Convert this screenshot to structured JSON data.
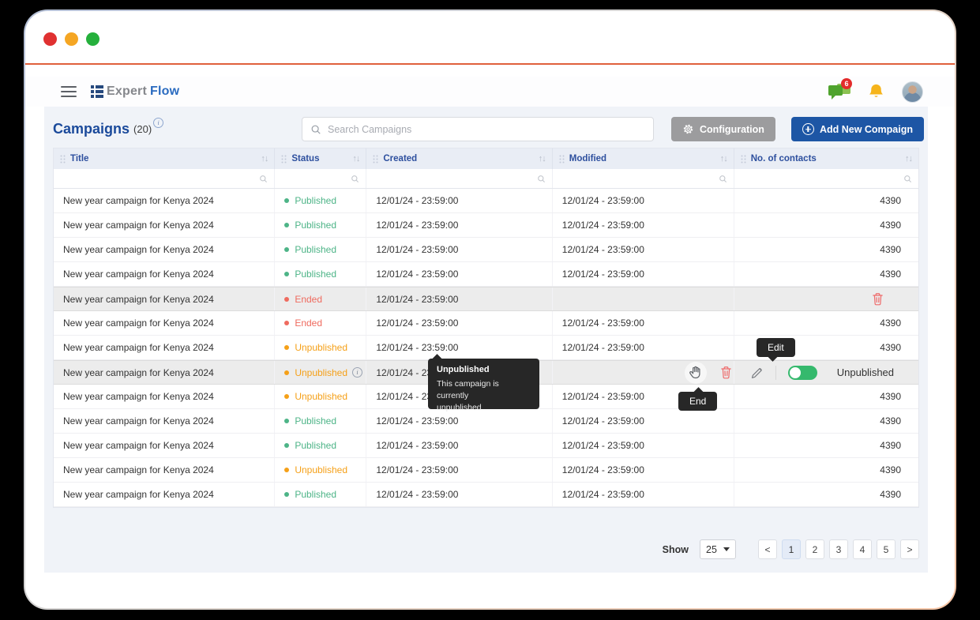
{
  "topbar": {
    "brand_expert": "Expert",
    "brand_flow": "Flow",
    "chat_badge": "6"
  },
  "page": {
    "title": "Campaigns",
    "count": "(20)",
    "search_placeholder": "Search Campaigns",
    "configuration_label": "Configuration",
    "add_button_label": "Add New Compaign"
  },
  "table": {
    "columns": [
      {
        "label": "Title"
      },
      {
        "label": "Status"
      },
      {
        "label": "Created"
      },
      {
        "label": "Modified"
      },
      {
        "label": "No. of contacts"
      }
    ],
    "rows": [
      {
        "title": "New year campaign for Kenya 2024",
        "status": "Published",
        "status_type": "published",
        "created": "12/01/24 - 23:59:00",
        "modified": "12/01/24 - 23:59:00",
        "contacts": "4390"
      },
      {
        "title": "New year campaign for Kenya 2024",
        "status": "Published",
        "status_type": "published",
        "created": "12/01/24 - 23:59:00",
        "modified": "12/01/24 - 23:59:00",
        "contacts": "4390"
      },
      {
        "title": "New year campaign for Kenya 2024",
        "status": "Published",
        "status_type": "published",
        "created": "12/01/24 - 23:59:00",
        "modified": "12/01/24 - 23:59:00",
        "contacts": "4390"
      },
      {
        "title": "New year campaign for Kenya 2024",
        "status": "Published",
        "status_type": "published",
        "created": "12/01/24 - 23:59:00",
        "modified": "12/01/24 - 23:59:00",
        "contacts": "4390"
      },
      {
        "title": "New year campaign for Kenya 2024",
        "status": "Ended",
        "status_type": "ended",
        "created": "12/01/24 - 23:59:00",
        "modified": "",
        "contacts": "",
        "hovered": true,
        "show_delete": true
      },
      {
        "title": "New year campaign for Kenya 2024",
        "status": "Ended",
        "status_type": "ended",
        "created": "12/01/24 - 23:59:00",
        "modified": "12/01/24 - 23:59:00",
        "contacts": "4390"
      },
      {
        "title": "New year campaign for Kenya 2024",
        "status": "Unpublished",
        "status_type": "unpublished",
        "created": "12/01/24 - 23:59:00",
        "modified": "12/01/24 - 23:59:00",
        "contacts": "4390"
      },
      {
        "title": "New year campaign for Kenya 2024",
        "status": "Unpublished",
        "status_type": "unpublished",
        "created": "12/01/24 - 23:59:00",
        "modified": "",
        "contacts": "",
        "hovered": true,
        "has_info": true,
        "actions": true,
        "toggle_label": "Unpublished"
      },
      {
        "title": "New year campaign for Kenya 2024",
        "status": "Unpublished",
        "status_type": "unpublished",
        "created": "12/01/24 - 23:59:00",
        "modified": "12/01/24 - 23:59:00",
        "contacts": "4390"
      },
      {
        "title": "New year campaign for Kenya 2024",
        "status": "Published",
        "status_type": "published",
        "created": "12/01/24 - 23:59:00",
        "modified": "12/01/24 - 23:59:00",
        "contacts": "4390"
      },
      {
        "title": "New year campaign for Kenya 2024",
        "status": "Published",
        "status_type": "published",
        "created": "12/01/24 - 23:59:00",
        "modified": "12/01/24 - 23:59:00",
        "contacts": "4390"
      },
      {
        "title": "New year campaign for Kenya 2024",
        "status": "Unpublished",
        "status_type": "unpublished",
        "created": "12/01/24 - 23:59:00",
        "modified": "12/01/24 - 23:59:00",
        "contacts": "4390"
      },
      {
        "title": "New year campaign for Kenya 2024",
        "status": "Published",
        "status_type": "published",
        "created": "12/01/24 - 23:59:00",
        "modified": "12/01/24 - 23:59:00",
        "contacts": "4390"
      }
    ]
  },
  "tooltips": {
    "status_title": "Unpublished",
    "status_line1": "This campaign is currently",
    "status_line2": "unpublished",
    "edit": "Edit",
    "end": "End"
  },
  "pagination": {
    "show_label": "Show",
    "page_size": "25",
    "prev": "<",
    "next": ">",
    "pages": [
      "1",
      "2",
      "3",
      "4",
      "5"
    ],
    "active_page": "1"
  },
  "colors": {
    "accent_blue": "#1d56a5",
    "published_green": "#4db487",
    "ended_red": "#ef6b5f",
    "unpublished_orange": "#f5a018",
    "toggle_green": "#35b96d",
    "tooltip_bg": "#272727"
  }
}
